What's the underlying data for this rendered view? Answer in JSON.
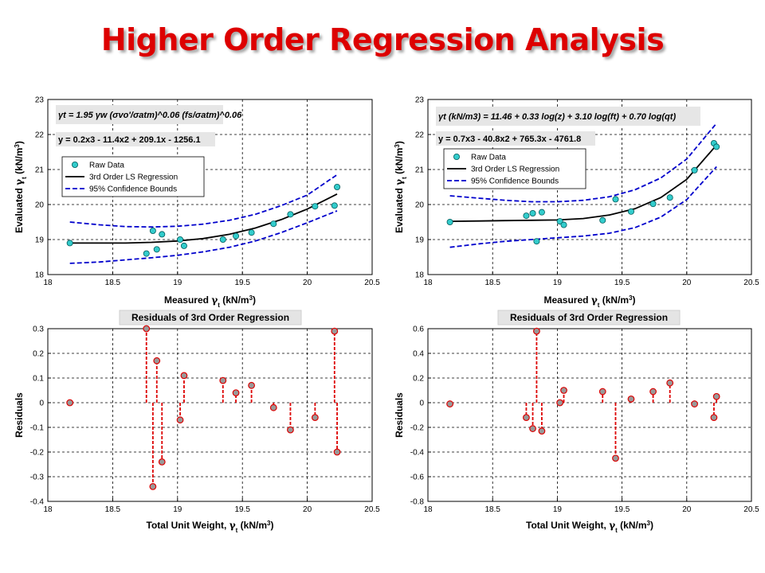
{
  "page": {
    "title": "Higher Order Regression Analysis"
  },
  "colors": {
    "title": "#dd0000",
    "marker_fill": "#33cccc",
    "fit": "#000000",
    "bounds": "#0000cc",
    "stem": "#dd0000",
    "resid_fill": "#999999"
  },
  "chart_data": [
    {
      "id": "tl",
      "type": "scatter",
      "xlabel": "Measured γt (kN/m3)",
      "ylabel": "Evaluated γt (kN/m3)",
      "xlim": [
        18,
        20.5
      ],
      "ylim": [
        18,
        23
      ],
      "xticks": [
        "18",
        "18.5",
        "19",
        "19.5",
        "20",
        "20.5"
      ],
      "yticks": [
        "18",
        "19",
        "20",
        "21",
        "22",
        "23"
      ],
      "grid": true,
      "equations": [
        "γt = 1.95 γw (σvo'/σatm)^0.06 (fs/σatm)^0.06",
        "y = 0.2x3 - 11.4x2 + 209.1x - 1256.1"
      ],
      "legend": {
        "placement": "middle-left",
        "entries": [
          "Raw Data",
          "3rd Order LS Regression",
          "95% Confidence Bounds"
        ]
      },
      "series": [
        {
          "name": "Raw Data",
          "x": [
            18.17,
            18.76,
            18.81,
            18.84,
            18.88,
            19.02,
            19.05,
            19.35,
            19.45,
            19.57,
            19.74,
            19.87,
            20.06,
            20.21,
            20.23
          ],
          "y": [
            18.9,
            18.6,
            19.25,
            18.72,
            19.15,
            19.0,
            18.82,
            19.0,
            19.1,
            19.2,
            19.45,
            19.72,
            19.95,
            19.97,
            20.5
          ]
        },
        {
          "name": "3rd Order LS Regression",
          "x": [
            18.17,
            18.4,
            18.6,
            18.8,
            19.0,
            19.2,
            19.4,
            19.6,
            19.8,
            20.0,
            20.23
          ],
          "y": [
            18.9,
            18.9,
            18.9,
            18.92,
            18.96,
            19.03,
            19.15,
            19.33,
            19.57,
            19.87,
            20.3
          ]
        },
        {
          "name": "95% Confidence Bounds",
          "x": [
            18.17,
            18.4,
            18.6,
            18.8,
            19.0,
            19.2,
            19.4,
            19.6,
            19.8,
            20.0,
            20.23
          ],
          "y": [
            19.5,
            19.42,
            19.37,
            19.36,
            19.38,
            19.44,
            19.55,
            19.72,
            19.97,
            20.27,
            20.85
          ]
        },
        {
          "name": "95% Confidence Bounds",
          "x": [
            18.17,
            18.4,
            18.6,
            18.8,
            19.0,
            19.2,
            19.4,
            19.6,
            19.8,
            20.0,
            20.23
          ],
          "y": [
            18.32,
            18.36,
            18.42,
            18.48,
            18.55,
            18.65,
            18.78,
            18.96,
            19.2,
            19.48,
            19.82
          ]
        }
      ]
    },
    {
      "id": "tr",
      "type": "scatter",
      "xlabel": "Measured γt (kN/m3)",
      "ylabel": "Evaluated γt (kN/m3)",
      "xlim": [
        18,
        20.5
      ],
      "ylim": [
        18,
        23
      ],
      "xticks": [
        "18",
        "18.5",
        "19",
        "19.5",
        "20",
        "20.5"
      ],
      "yticks": [
        "18",
        "19",
        "20",
        "21",
        "22",
        "23"
      ],
      "grid": true,
      "equations": [
        "γt (kN/m3) = 11.46 + 0.33 log(z) + 3.10 log(ft) + 0.70 log(qt)",
        "y = 0.7x3 - 40.8x2 + 765.3x - 4761.8"
      ],
      "legend": {
        "placement": "top-right",
        "entries": [
          "Raw Data",
          "3rd Order LS Regression",
          "95% Confidence Bounds"
        ]
      },
      "series": [
        {
          "name": "Raw Data",
          "x": [
            18.17,
            18.76,
            18.81,
            18.84,
            18.88,
            19.02,
            19.05,
            19.35,
            19.45,
            19.57,
            19.74,
            19.87,
            20.06,
            20.21,
            20.23
          ],
          "y": [
            19.5,
            19.68,
            19.75,
            18.95,
            19.78,
            19.52,
            19.42,
            19.55,
            20.15,
            19.8,
            20.02,
            20.2,
            20.98,
            21.75,
            21.65
          ]
        },
        {
          "name": "3rd Order LS Regression",
          "x": [
            18.17,
            18.4,
            18.6,
            18.8,
            19.0,
            19.2,
            19.4,
            19.6,
            19.8,
            20.0,
            20.23
          ],
          "y": [
            19.52,
            19.53,
            19.54,
            19.55,
            19.56,
            19.6,
            19.7,
            19.88,
            20.2,
            20.72,
            21.7
          ]
        },
        {
          "name": "95% Confidence Bounds",
          "x": [
            18.17,
            18.4,
            18.6,
            18.8,
            19.0,
            19.2,
            19.4,
            19.6,
            19.8,
            20.0,
            20.23
          ],
          "y": [
            20.25,
            20.18,
            20.12,
            20.08,
            20.08,
            20.12,
            20.22,
            20.42,
            20.76,
            21.3,
            22.32
          ]
        },
        {
          "name": "95% Confidence Bounds",
          "x": [
            18.17,
            18.4,
            18.6,
            18.8,
            19.0,
            19.2,
            19.4,
            19.6,
            19.8,
            20.0,
            20.23
          ],
          "y": [
            18.78,
            18.88,
            18.95,
            19.0,
            19.05,
            19.1,
            19.18,
            19.34,
            19.64,
            20.14,
            21.08
          ]
        }
      ]
    },
    {
      "id": "bl",
      "type": "scatter",
      "title": "Residuals of 3rd Order Regression",
      "xlabel": "Total Unit Weight, γt (kN/m3)",
      "ylabel": "Residuals",
      "xlim": [
        18,
        20.5
      ],
      "ylim": [
        -0.4,
        0.3
      ],
      "xticks": [
        "18",
        "18.5",
        "19",
        "19.5",
        "20",
        "20.5"
      ],
      "yticks": [
        "-0.4",
        "-0.3",
        "-0.2",
        "-0.1",
        "0",
        "0.1",
        "0.2",
        "0.3"
      ],
      "grid": true,
      "series": [
        {
          "x": [
            18.17,
            18.76,
            18.81,
            18.84,
            18.88,
            19.02,
            19.05,
            19.35,
            19.45,
            19.57,
            19.74,
            19.87,
            20.06,
            20.21,
            20.23
          ],
          "y": [
            0.0,
            0.3,
            -0.34,
            0.17,
            -0.24,
            -0.07,
            0.11,
            0.09,
            0.04,
            0.07,
            -0.02,
            -0.11,
            -0.06,
            0.29,
            -0.2
          ]
        }
      ]
    },
    {
      "id": "br",
      "type": "scatter",
      "title": "Residuals of 3rd Order Regression",
      "xlabel": "Total Unit Weight, γt (kN/m3)",
      "ylabel": "Residuals",
      "xlim": [
        18,
        20.5
      ],
      "ylim": [
        -0.8,
        0.6
      ],
      "xticks": [
        "18",
        "18.5",
        "19",
        "19.5",
        "20",
        "20.5"
      ],
      "yticks": [
        "-0.8",
        "-0.6",
        "-0.4",
        "-0.2",
        "0",
        "0.2",
        "0.4",
        "0.6"
      ],
      "grid": true,
      "series": [
        {
          "x": [
            18.17,
            18.76,
            18.81,
            18.84,
            18.88,
            19.02,
            19.05,
            19.35,
            19.45,
            19.57,
            19.74,
            19.87,
            20.06,
            20.21,
            20.23
          ],
          "y": [
            -0.01,
            -0.12,
            -0.21,
            0.58,
            -0.23,
            0.0,
            0.1,
            0.09,
            -0.45,
            0.03,
            0.09,
            0.16,
            -0.01,
            -0.12,
            0.05
          ]
        }
      ]
    }
  ]
}
